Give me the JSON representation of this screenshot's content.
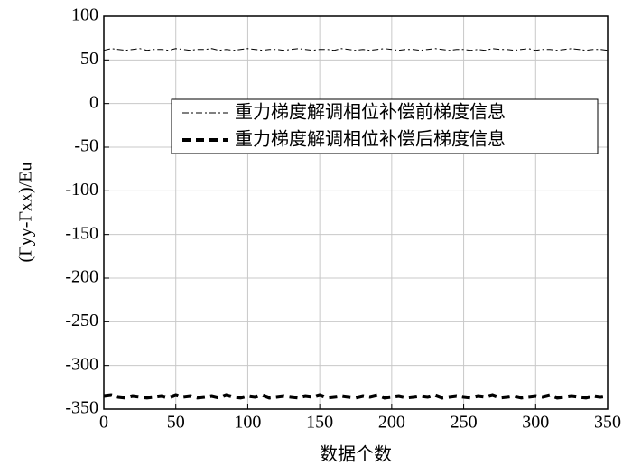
{
  "chart_data": {
    "type": "line",
    "x_label": "数据个数",
    "y_label": "(Γyy-Γxx)/Eu",
    "x": [
      0,
      5,
      10,
      15,
      20,
      25,
      30,
      35,
      40,
      45,
      50,
      55,
      60,
      65,
      70,
      75,
      80,
      85,
      90,
      95,
      100,
      105,
      110,
      115,
      120,
      125,
      130,
      135,
      140,
      145,
      150,
      155,
      160,
      165,
      170,
      175,
      180,
      185,
      190,
      195,
      200,
      205,
      210,
      215,
      220,
      225,
      230,
      235,
      240,
      245,
      250,
      255,
      260,
      265,
      270,
      275,
      280,
      285,
      290,
      295,
      300,
      305,
      310,
      315,
      320,
      325,
      330,
      335,
      340,
      345,
      350
    ],
    "series": [
      {
        "name": "重力梯度解调相位补偿前梯度信息",
        "color": "#000000",
        "linestyle": "dashdot",
        "values": [
          61,
          63,
          62,
          61,
          62,
          63,
          61,
          62,
          62,
          61,
          63,
          62,
          61,
          62,
          62,
          63,
          61,
          62,
          61,
          62,
          63,
          62,
          61,
          62,
          62,
          61,
          62,
          63,
          62,
          61,
          62,
          62,
          61,
          63,
          62,
          61,
          62,
          61,
          62,
          63,
          62,
          61,
          62,
          62,
          61,
          62,
          63,
          62,
          61,
          62,
          62,
          61,
          62,
          61,
          63,
          62,
          62,
          61,
          62,
          63,
          61,
          62,
          62,
          61,
          62,
          63,
          62,
          61,
          62,
          62,
          61
        ]
      },
      {
        "name": "重力梯度解调相位补偿后梯度信息",
        "color": "#000000",
        "linestyle": "dashed",
        "values": [
          -335,
          -334,
          -336,
          -337,
          -335,
          -336,
          -337,
          -336,
          -335,
          -337,
          -334,
          -336,
          -335,
          -337,
          -336,
          -335,
          -337,
          -334,
          -336,
          -337,
          -335,
          -336,
          -334,
          -337,
          -336,
          -335,
          -336,
          -337,
          -335,
          -336,
          -334,
          -337,
          -336,
          -335,
          -336,
          -337,
          -335,
          -336,
          -334,
          -337,
          -336,
          -335,
          -337,
          -336,
          -335,
          -336,
          -334,
          -337,
          -336,
          -335,
          -336,
          -337,
          -335,
          -336,
          -334,
          -337,
          -336,
          -335,
          -337,
          -336,
          -335,
          -336,
          -334,
          -337,
          -336,
          -335,
          -336,
          -337,
          -335,
          -336,
          -335
        ]
      }
    ],
    "xlim": [
      0,
      350
    ],
    "xticks": [
      0,
      50,
      100,
      150,
      200,
      250,
      300,
      350
    ],
    "ylim": [
      -350,
      100
    ],
    "yticks": [
      -350,
      -300,
      -250,
      -200,
      -150,
      -100,
      -50,
      0,
      50,
      100
    ],
    "grid": true,
    "legend": "upper right"
  }
}
